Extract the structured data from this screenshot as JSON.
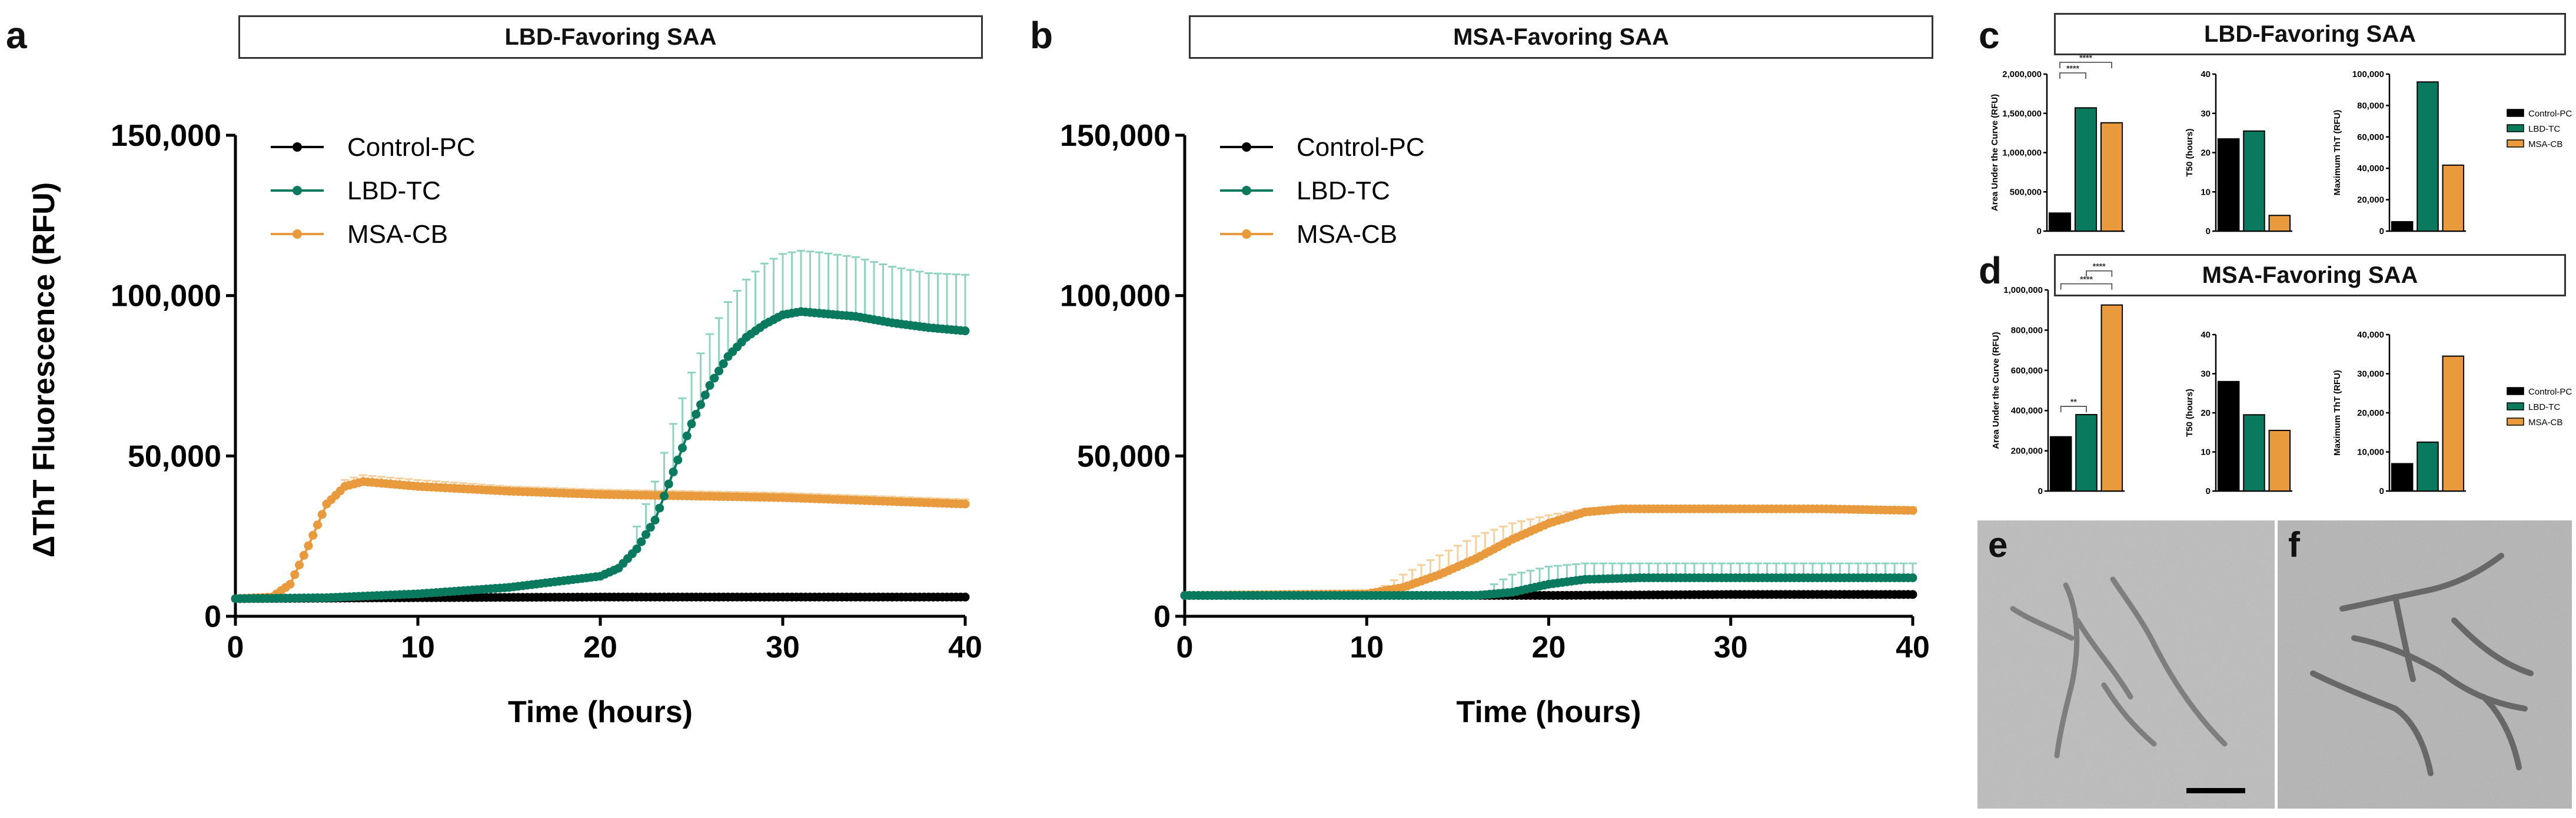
{
  "colors": {
    "control": "#000000",
    "lbd": "#0a7a5f",
    "msa": "#e89a3c",
    "lbd_error": "#8fd3c0",
    "msa_error": "#f5cf9c"
  },
  "panels": {
    "a": {
      "letter": "a",
      "title": "LBD-Favoring SAA"
    },
    "b": {
      "letter": "b",
      "title": "MSA-Favoring SAA"
    },
    "c": {
      "letter": "c",
      "title": "LBD-Favoring SAA"
    },
    "d": {
      "letter": "d",
      "title": "MSA-Favoring SAA"
    },
    "e": {
      "letter": "e"
    },
    "f": {
      "letter": "f"
    }
  },
  "chart_data": [
    {
      "id": "a",
      "type": "line",
      "title": "LBD-Favoring SAA",
      "xlabel": "Time (hours)",
      "ylabel": "ΔThT Fluorescence (RFU)",
      "xlim": [
        0,
        40
      ],
      "ylim": [
        0,
        150000
      ],
      "xticks": [
        "0",
        "10",
        "20",
        "30",
        "40"
      ],
      "yticks": [
        "0",
        "50,000",
        "100,000",
        "150,000"
      ],
      "legend": [
        "Control-PC",
        "LBD-TC",
        "MSA-CB"
      ],
      "series": [
        {
          "name": "Control-PC",
          "color_key": "control",
          "points": [
            [
              0,
              5500
            ],
            [
              10,
              5800
            ],
            [
              20,
              6000
            ],
            [
              30,
              6000
            ],
            [
              40,
              6000
            ]
          ],
          "err": []
        },
        {
          "name": "LBD-TC",
          "color_key": "lbd",
          "points": [
            [
              0,
              5500
            ],
            [
              5,
              5800
            ],
            [
              10,
              7000
            ],
            [
              15,
              9000
            ],
            [
              20,
              12500
            ],
            [
              21,
              15000
            ],
            [
              22,
              21000
            ],
            [
              23,
              30000
            ],
            [
              24,
              45000
            ],
            [
              25,
              60000
            ],
            [
              26,
              72000
            ],
            [
              27,
              81000
            ],
            [
              28,
              87000
            ],
            [
              29,
              91000
            ],
            [
              30,
              94000
            ],
            [
              31,
              95000
            ],
            [
              32,
              94500
            ],
            [
              34,
              93500
            ],
            [
              36,
              91500
            ],
            [
              38,
              90000
            ],
            [
              40,
              89000
            ]
          ],
          "err": [
            [
              22,
              28000
            ],
            [
              23,
              42000
            ],
            [
              24,
              60000
            ],
            [
              25,
              76000
            ],
            [
              26,
              88000
            ],
            [
              27,
              98000
            ],
            [
              28,
              105000
            ],
            [
              29,
              110000
            ],
            [
              30,
              113000
            ],
            [
              31,
              114000
            ],
            [
              32,
              113500
            ],
            [
              34,
              112000
            ],
            [
              36,
              109000
            ],
            [
              38,
              107000
            ],
            [
              40,
              106500
            ]
          ]
        },
        {
          "name": "MSA-CB",
          "color_key": "msa",
          "points": [
            [
              0,
              5500
            ],
            [
              2,
              6000
            ],
            [
              3,
              10000
            ],
            [
              4,
              22000
            ],
            [
              5,
              35000
            ],
            [
              6,
              40500
            ],
            [
              7,
              42000
            ],
            [
              8,
              41500
            ],
            [
              10,
              40500
            ],
            [
              15,
              39000
            ],
            [
              20,
              38000
            ],
            [
              25,
              37500
            ],
            [
              30,
              37000
            ],
            [
              35,
              36000
            ],
            [
              40,
              35000
            ]
          ],
          "err": [
            [
              6,
              42500
            ],
            [
              7,
              44000
            ],
            [
              8,
              43500
            ],
            [
              10,
              42500
            ],
            [
              15,
              40500
            ],
            [
              20,
              39500
            ],
            [
              25,
              39000
            ],
            [
              30,
              38500
            ],
            [
              35,
              37500
            ],
            [
              40,
              36500
            ]
          ]
        }
      ]
    },
    {
      "id": "b",
      "type": "line",
      "title": "MSA-Favoring SAA",
      "xlabel": "Time (hours)",
      "ylabel": "",
      "xlim": [
        0,
        40
      ],
      "ylim": [
        0,
        150000
      ],
      "xticks": [
        "0",
        "10",
        "20",
        "30",
        "40"
      ],
      "yticks": [
        "0",
        "50,000",
        "100,000",
        "150,000"
      ],
      "legend": [
        "Control-PC",
        "LBD-TC",
        "MSA-CB"
      ],
      "series": [
        {
          "name": "Control-PC",
          "color_key": "control",
          "points": [
            [
              0,
              6500
            ],
            [
              10,
              6500
            ],
            [
              20,
              6500
            ],
            [
              30,
              6800
            ],
            [
              40,
              6800
            ]
          ],
          "err": []
        },
        {
          "name": "LBD-TC",
          "color_key": "lbd",
          "points": [
            [
              0,
              6500
            ],
            [
              16,
              6500
            ],
            [
              18,
              7500
            ],
            [
              20,
              10000
            ],
            [
              22,
              11500
            ],
            [
              25,
              12000
            ],
            [
              30,
              12000
            ],
            [
              35,
              12000
            ],
            [
              40,
              12000
            ]
          ],
          "err": [
            [
              17,
              10000
            ],
            [
              18,
              13000
            ],
            [
              20,
              15500
            ],
            [
              22,
              16500
            ],
            [
              25,
              16500
            ],
            [
              30,
              16500
            ],
            [
              35,
              16500
            ],
            [
              40,
              16500
            ]
          ]
        },
        {
          "name": "MSA-CB",
          "color_key": "msa",
          "points": [
            [
              0,
              6500
            ],
            [
              10,
              7000
            ],
            [
              12,
              9000
            ],
            [
              14,
              13000
            ],
            [
              16,
              18000
            ],
            [
              18,
              24000
            ],
            [
              20,
              29000
            ],
            [
              22,
              32500
            ],
            [
              24,
              33500
            ],
            [
              30,
              33500
            ],
            [
              35,
              33500
            ],
            [
              40,
              33000
            ]
          ],
          "err": [
            [
              11,
              9500
            ],
            [
              12,
              13000
            ],
            [
              14,
              19000
            ],
            [
              16,
              25000
            ],
            [
              18,
              29000
            ],
            [
              20,
              31500
            ],
            [
              22,
              33500
            ],
            [
              24,
              34500
            ],
            [
              30,
              34500
            ],
            [
              40,
              34000
            ]
          ]
        }
      ]
    },
    {
      "id": "c1",
      "type": "bar",
      "ylabel": "Area Under the Curve (RFU)",
      "categories": [
        "Control-PC",
        "LBD-TC",
        "MSA-CB"
      ],
      "values": [
        230000,
        1570000,
        1380000
      ],
      "ylim": [
        0,
        2000000
      ],
      "yticks": [
        "0",
        "500,000",
        "1,000,000",
        "1,500,000",
        "2,000,000"
      ],
      "significance": [
        {
          "from": 0,
          "to": 1,
          "label": "****"
        },
        {
          "from": 0,
          "to": 2,
          "label": "****"
        }
      ]
    },
    {
      "id": "c2",
      "type": "bar",
      "ylabel": "T50 (hours)",
      "categories": [
        "Control-PC",
        "LBD-TC",
        "MSA-CB"
      ],
      "values": [
        23.5,
        25.5,
        4
      ],
      "ylim": [
        0,
        40
      ],
      "yticks": [
        "0",
        "10",
        "20",
        "30",
        "40"
      ],
      "significance": []
    },
    {
      "id": "c3",
      "type": "bar",
      "ylabel": "Maximum ThT (RFU)",
      "categories": [
        "Control-PC",
        "LBD-TC",
        "MSA-CB"
      ],
      "values": [
        6000,
        95000,
        42000
      ],
      "ylim": [
        0,
        100000
      ],
      "yticks": [
        "0",
        "20,000",
        "40,000",
        "60,000",
        "80,000",
        "100,000"
      ],
      "significance": [],
      "legend": [
        "Control-PC",
        "LBD-TC",
        "MSA-CB"
      ]
    },
    {
      "id": "d1",
      "type": "bar",
      "ylabel": "Area Under the Curve (RFU)",
      "categories": [
        "Control-PC",
        "LBD-TC",
        "MSA-CB"
      ],
      "values": [
        270000,
        380000,
        925000
      ],
      "ylim": [
        0,
        1000000
      ],
      "yticks": [
        "0",
        "200,000",
        "400,000",
        "600,000",
        "800,000",
        "1,000,000"
      ],
      "significance": [
        {
          "from": 0,
          "to": 1,
          "label": "**"
        },
        {
          "from": 0,
          "to": 2,
          "label": "****"
        },
        {
          "from": 1,
          "to": 2,
          "label": "****"
        }
      ]
    },
    {
      "id": "d2",
      "type": "bar",
      "ylabel": "T50 (hours)",
      "categories": [
        "Control-PC",
        "LBD-TC",
        "MSA-CB"
      ],
      "values": [
        28,
        19.5,
        15.5
      ],
      "ylim": [
        0,
        40
      ],
      "yticks": [
        "0",
        "10",
        "20",
        "30",
        "40"
      ],
      "significance": []
    },
    {
      "id": "d3",
      "type": "bar",
      "ylabel": "Maximum ThT (RFU)",
      "categories": [
        "Control-PC",
        "LBD-TC",
        "MSA-CB"
      ],
      "values": [
        7000,
        12500,
        34500
      ],
      "ylim": [
        0,
        40000
      ],
      "yticks": [
        "0",
        "10,000",
        "20,000",
        "30,000",
        "40,000"
      ],
      "significance": [],
      "legend": [
        "Control-PC",
        "LBD-TC",
        "MSA-CB"
      ]
    }
  ]
}
